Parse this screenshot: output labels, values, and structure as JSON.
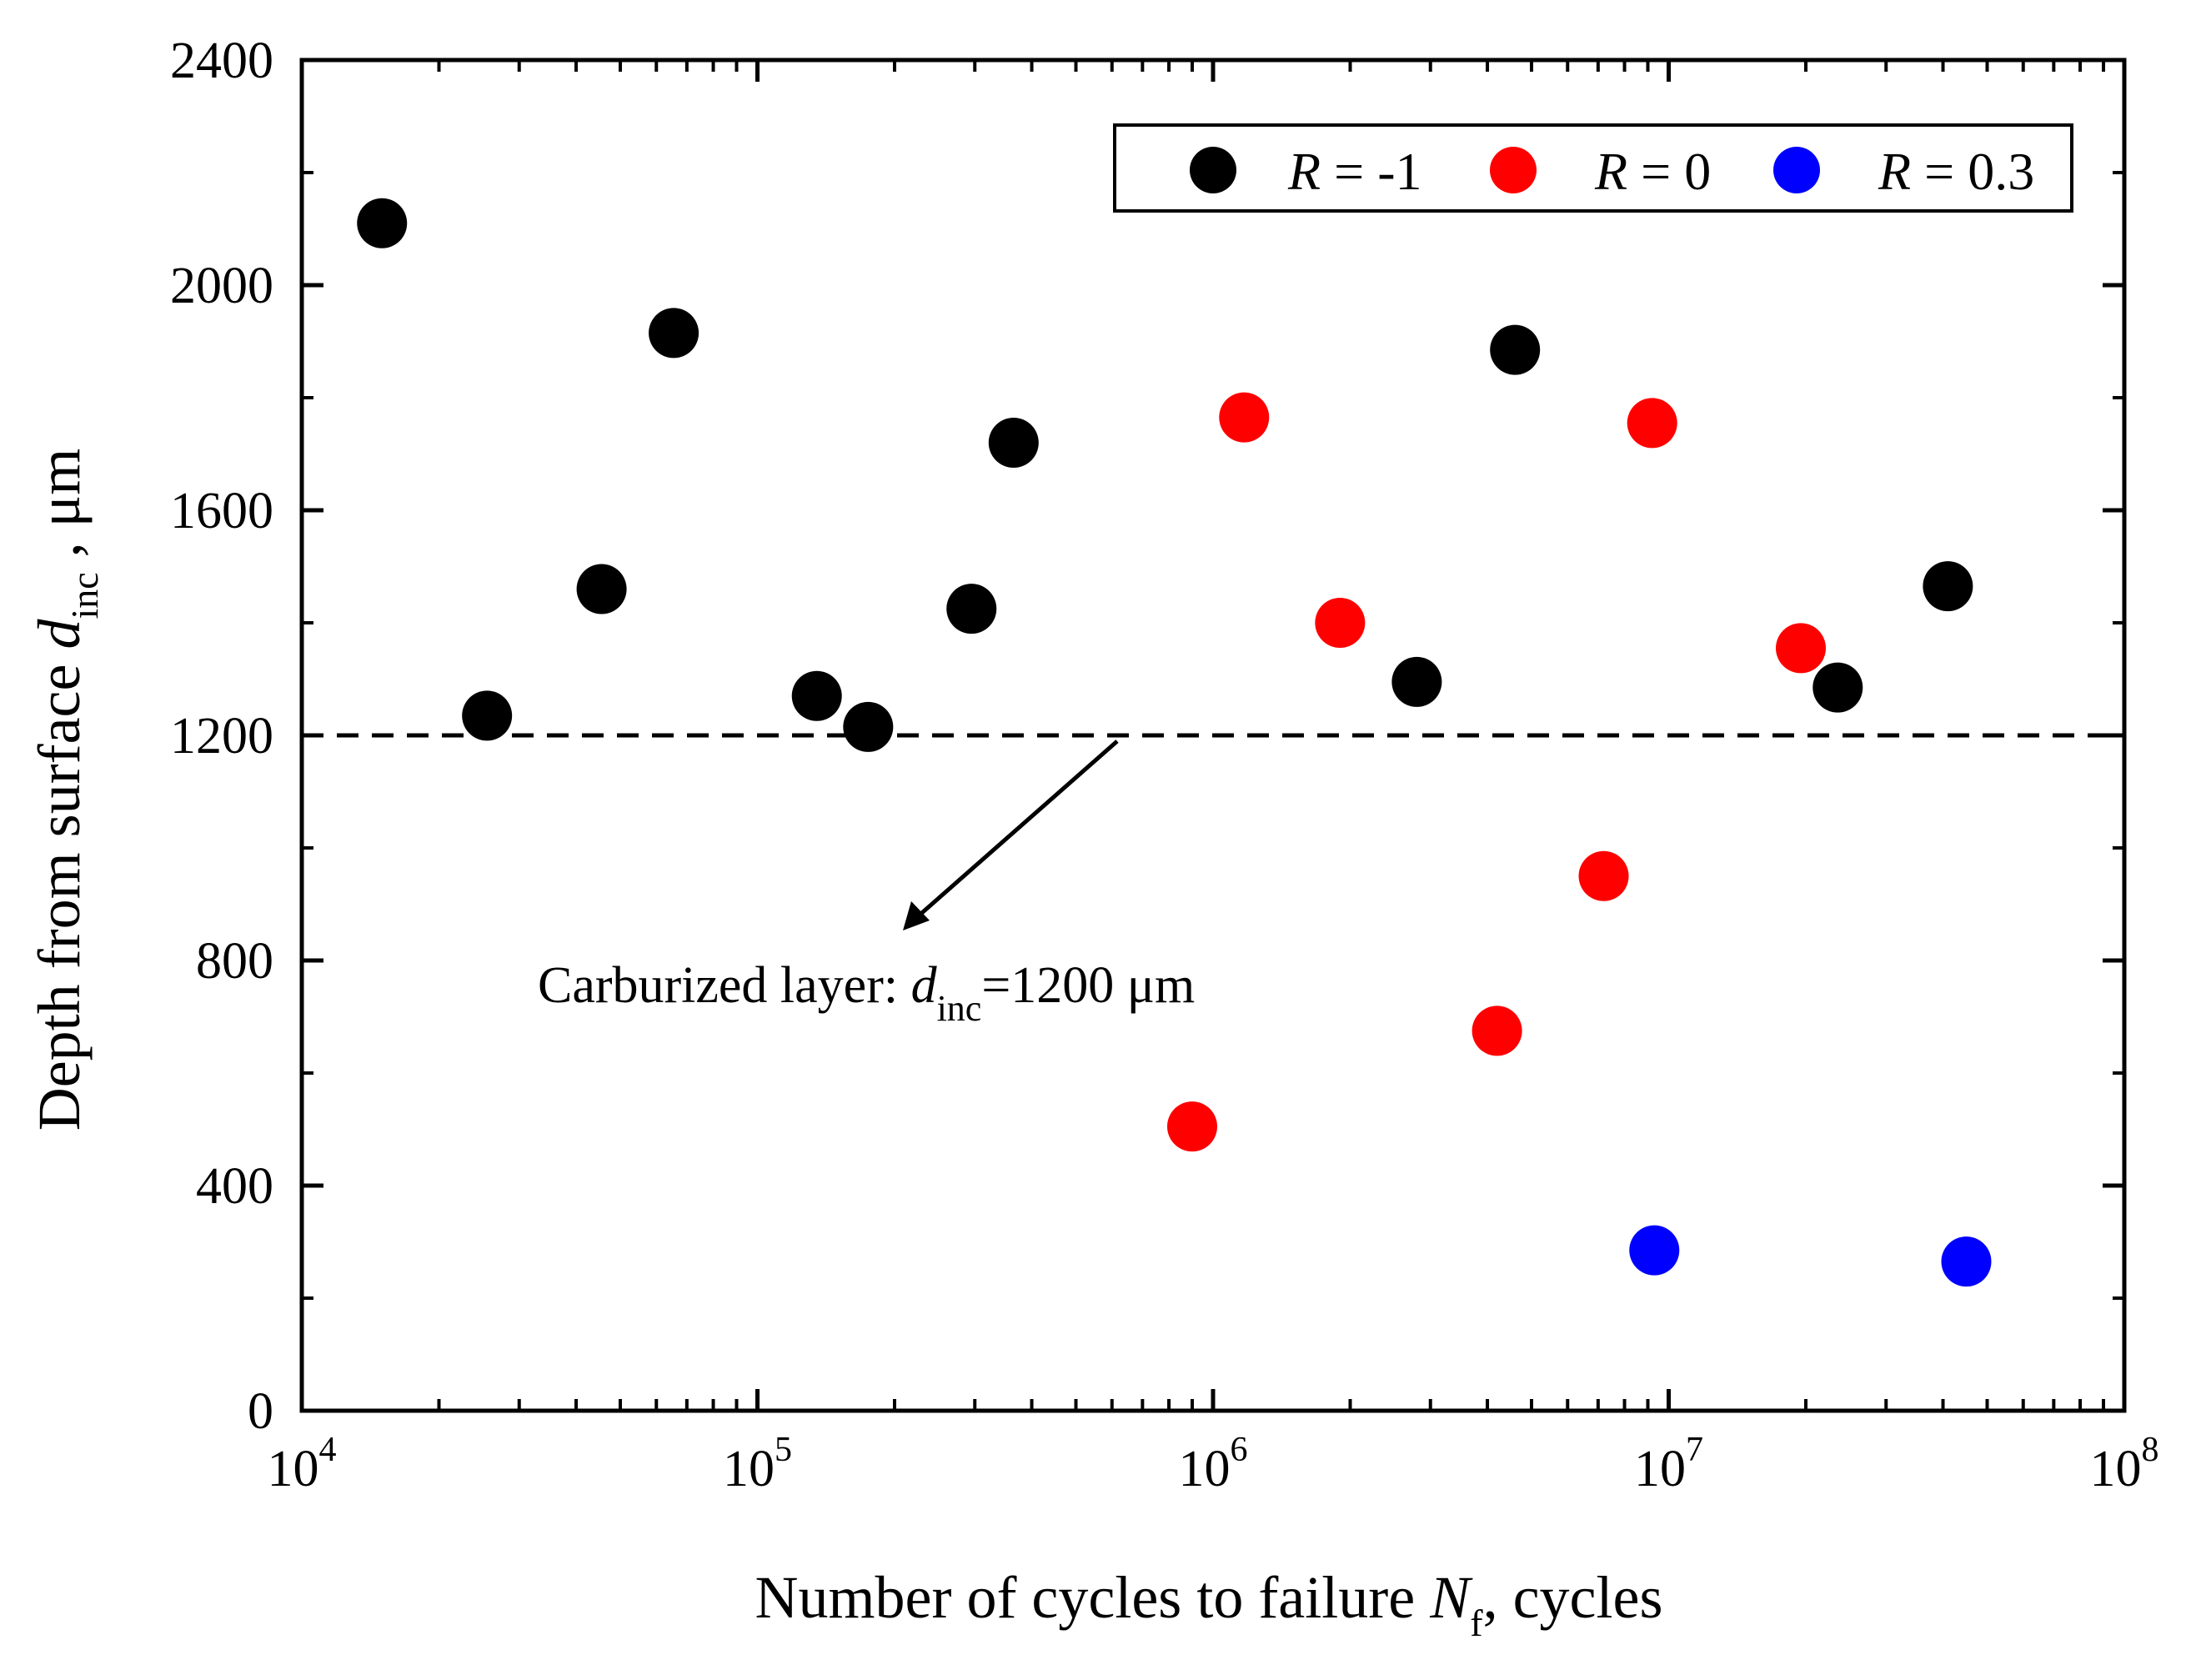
{
  "chart_data": {
    "type": "scatter",
    "title": "",
    "xscale": "log",
    "xlim": [
      10000,
      100000000
    ],
    "ylim": [
      0,
      2400
    ],
    "x_tick_bases": [
      "10",
      "10",
      "10",
      "10",
      "10"
    ],
    "x_tick_exponents": [
      "4",
      "5",
      "6",
      "7",
      "8"
    ],
    "y_ticks": [
      "0",
      "400",
      "800",
      "1200",
      "1600",
      "2000",
      "2400"
    ],
    "xlabel": {
      "main": "Number of cycles to failure ",
      "var": "N",
      "sub": "f",
      "rest": ", cycles"
    },
    "ylabel": {
      "main": "Depth from surface ",
      "var": "d",
      "sub": "inc",
      "rest": " , μm"
    },
    "legend": {
      "position": "top-right",
      "entries": [
        {
          "var": "R",
          "rest": " = -1",
          "color": "#000000"
        },
        {
          "var": "R",
          "rest": " = 0",
          "color": "#ff0000"
        },
        {
          "var": "R",
          "rest": " = 0.3",
          "color": "#0000ff"
        }
      ]
    },
    "reference_line": {
      "y": 1200,
      "style": "dashed"
    },
    "annotation": {
      "main": "Carburized layer: ",
      "var": "d",
      "sub": "inc",
      "rest": "=1200 μm"
    },
    "series": [
      {
        "name": "R = -1",
        "color": "#000000",
        "points": [
          [
            15000,
            2110
          ],
          [
            25500,
            1235
          ],
          [
            45500,
            1460
          ],
          [
            65500,
            1915
          ],
          [
            135000,
            1270
          ],
          [
            175000,
            1215
          ],
          [
            295000,
            1425
          ],
          [
            365000,
            1720
          ],
          [
            2800000,
            1295
          ],
          [
            4600000,
            1885
          ],
          [
            23500000,
            1285
          ],
          [
            41000000,
            1465
          ]
        ]
      },
      {
        "name": "R = 0",
        "color": "#ff0000",
        "points": [
          [
            900000,
            505
          ],
          [
            1170000,
            1765
          ],
          [
            1900000,
            1400
          ],
          [
            4200000,
            675
          ],
          [
            7200000,
            950
          ],
          [
            9200000,
            1755
          ],
          [
            19500000,
            1355
          ]
        ]
      },
      {
        "name": "R = 0.3",
        "color": "#0000ff",
        "points": [
          [
            9300000,
            285
          ],
          [
            45000000,
            265
          ]
        ]
      }
    ]
  }
}
